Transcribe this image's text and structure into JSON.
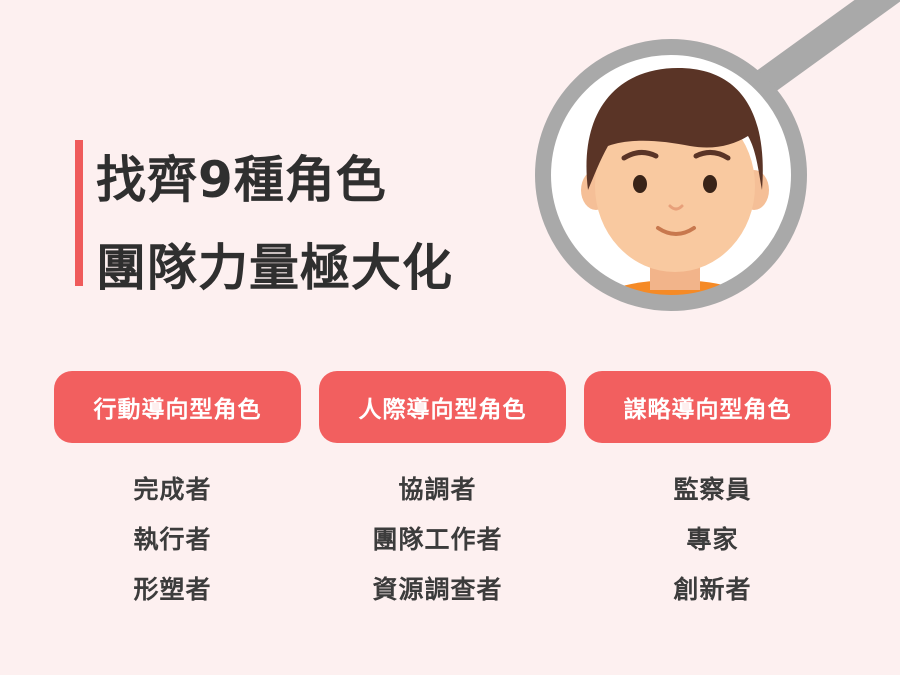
{
  "title": {
    "line1": "找齊9種角色",
    "line2": "團隊力量極大化"
  },
  "illustration": {
    "icon": "magnifier-over-boy-face-icon"
  },
  "colors": {
    "accent": "#f25f5f",
    "background": "#fdf0f0",
    "text": "#2f2f2f"
  },
  "columns": [
    {
      "header": "行動導向型角色",
      "items": [
        "完成者",
        "執行者",
        "形塑者"
      ]
    },
    {
      "header": "人際導向型角色",
      "items": [
        "協調者",
        "團隊工作者",
        "資源調查者"
      ]
    },
    {
      "header": "謀略導向型角色",
      "items": [
        "監察員",
        "專家",
        "創新者"
      ]
    }
  ]
}
